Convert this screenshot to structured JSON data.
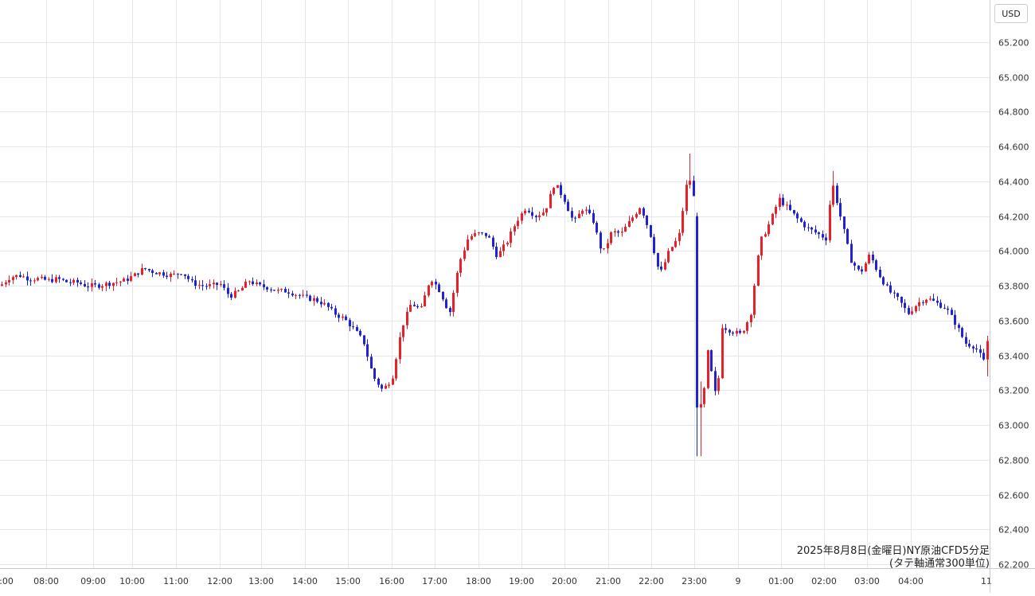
{
  "chart_data": {
    "type": "candlestick",
    "title": "2025年8月8日(金曜日)NY原油CFD5分足",
    "subtitle": "(タテ軸通常300単位)",
    "unit": "USD",
    "ylim": [
      62.2,
      65.3
    ],
    "y_ticks": [
      "65.200",
      "65.000",
      "64.800",
      "64.600",
      "64.400",
      "64.200",
      "64.000",
      "63.800",
      "63.600",
      "63.400",
      "63.200",
      "63.000",
      "62.800",
      "62.600",
      "62.400",
      "62.200"
    ],
    "x_ticks": [
      ":00",
      "08:00",
      "09:00",
      "10:00",
      "11:00",
      "12:00",
      "13:00",
      "14:00",
      "15:00",
      "16:00",
      "17:00",
      "18:00",
      "19:00",
      "20:00",
      "21:00",
      "22:00",
      "23:00",
      "9",
      "01:00",
      "02:00",
      "03:00",
      "04:00",
      "11"
    ],
    "grid": true,
    "up_color": "#e8202a",
    "down_color": "#1f22d6",
    "close_path": [
      [
        0,
        63.8
      ],
      [
        12,
        63.85
      ],
      [
        24,
        63.86
      ],
      [
        36,
        63.84
      ],
      [
        48,
        63.84
      ],
      [
        60,
        63.83
      ],
      [
        72,
        63.84
      ],
      [
        84,
        63.82
      ],
      [
        96,
        63.82
      ],
      [
        108,
        63.8
      ],
      [
        120,
        63.8
      ],
      [
        132,
        63.81
      ],
      [
        144,
        63.82
      ],
      [
        156,
        63.83
      ],
      [
        168,
        63.86
      ],
      [
        180,
        63.9
      ],
      [
        192,
        63.88
      ],
      [
        204,
        63.87
      ],
      [
        216,
        63.86
      ],
      [
        228,
        63.88
      ],
      [
        240,
        63.82
      ],
      [
        252,
        63.8
      ],
      [
        264,
        63.8
      ],
      [
        276,
        63.81
      ],
      [
        288,
        63.74
      ],
      [
        300,
        63.77
      ],
      [
        312,
        63.83
      ],
      [
        324,
        63.8
      ],
      [
        336,
        63.79
      ],
      [
        348,
        63.77
      ],
      [
        360,
        63.77
      ],
      [
        372,
        63.75
      ],
      [
        384,
        63.73
      ],
      [
        396,
        63.72
      ],
      [
        408,
        63.69
      ],
      [
        420,
        63.64
      ],
      [
        432,
        63.61
      ],
      [
        444,
        63.55
      ],
      [
        456,
        63.48
      ],
      [
        468,
        63.28
      ],
      [
        480,
        63.2
      ],
      [
        492,
        63.27
      ],
      [
        504,
        63.56
      ],
      [
        516,
        63.7
      ],
      [
        528,
        63.66
      ],
      [
        540,
        63.85
      ],
      [
        552,
        63.77
      ],
      [
        564,
        63.64
      ],
      [
        576,
        63.93
      ],
      [
        588,
        64.08
      ],
      [
        600,
        64.1
      ],
      [
        612,
        64.09
      ],
      [
        624,
        63.97
      ],
      [
        636,
        64.05
      ],
      [
        648,
        64.17
      ],
      [
        660,
        64.25
      ],
      [
        672,
        64.2
      ],
      [
        684,
        64.23
      ],
      [
        696,
        64.39
      ],
      [
        708,
        64.3
      ],
      [
        720,
        64.16
      ],
      [
        732,
        64.25
      ],
      [
        744,
        64.18
      ],
      [
        756,
        63.98
      ],
      [
        768,
        64.11
      ],
      [
        780,
        64.1
      ],
      [
        792,
        64.18
      ],
      [
        804,
        64.26
      ],
      [
        816,
        64.1
      ],
      [
        828,
        63.86
      ],
      [
        840,
        64.0
      ],
      [
        852,
        64.08
      ],
      [
        864,
        64.45
      ],
      [
        876,
        64.19
      ],
      [
        882,
        63.09
      ],
      [
        888,
        63.43
      ],
      [
        900,
        63.12
      ],
      [
        906,
        63.57
      ],
      [
        918,
        63.54
      ],
      [
        930,
        63.52
      ],
      [
        942,
        63.63
      ],
      [
        954,
        64.05
      ],
      [
        966,
        64.16
      ],
      [
        978,
        64.3
      ],
      [
        990,
        64.24
      ],
      [
        1002,
        64.18
      ],
      [
        1014,
        64.13
      ],
      [
        1026,
        64.1
      ],
      [
        1038,
        64.07
      ],
      [
        1044,
        64.41
      ],
      [
        1056,
        64.18
      ],
      [
        1068,
        63.95
      ],
      [
        1080,
        63.87
      ],
      [
        1092,
        63.98
      ],
      [
        1104,
        63.86
      ],
      [
        1116,
        63.77
      ],
      [
        1128,
        63.72
      ],
      [
        1140,
        63.64
      ],
      [
        1152,
        63.7
      ],
      [
        1164,
        63.73
      ],
      [
        1176,
        63.7
      ],
      [
        1188,
        63.67
      ],
      [
        1200,
        63.58
      ],
      [
        1212,
        63.47
      ],
      [
        1224,
        63.45
      ],
      [
        1236,
        63.36
      ],
      [
        1242,
        63.57
      ]
    ]
  }
}
